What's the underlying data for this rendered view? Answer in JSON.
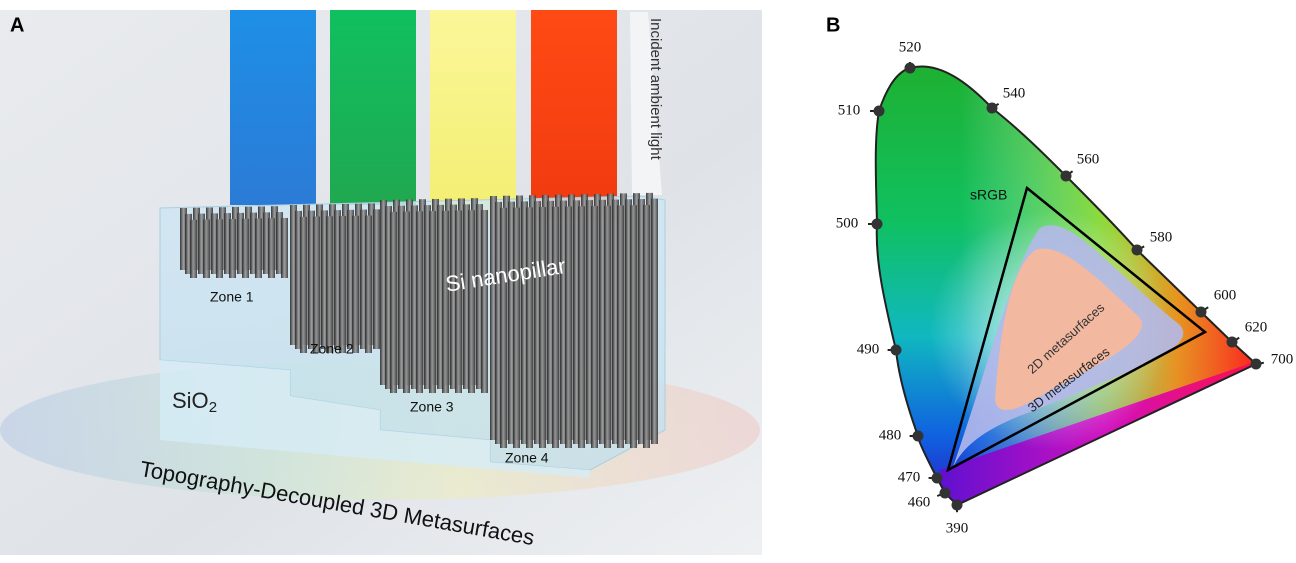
{
  "panel_a": {
    "label": "A",
    "incident_light": "Incident ambient light",
    "pillar_label": "Si nanopillar",
    "zones": [
      "Zone 1",
      "Zone 2",
      "Zone 3",
      "Zone 4"
    ],
    "substrate": {
      "base": "SiO",
      "subscript": "2"
    },
    "caption": "Topography-Decoupled 3D Metasurfaces"
  },
  "panel_b": {
    "label": "B",
    "wavelengths": [
      "390",
      "460",
      "470",
      "480",
      "490",
      "500",
      "510",
      "520",
      "540",
      "560",
      "580",
      "600",
      "620",
      "700"
    ],
    "srgb_label": "sRGB",
    "metasurface_2d": "2D metasurfaces",
    "metasurface_3d": "3D metasurfaces"
  }
}
